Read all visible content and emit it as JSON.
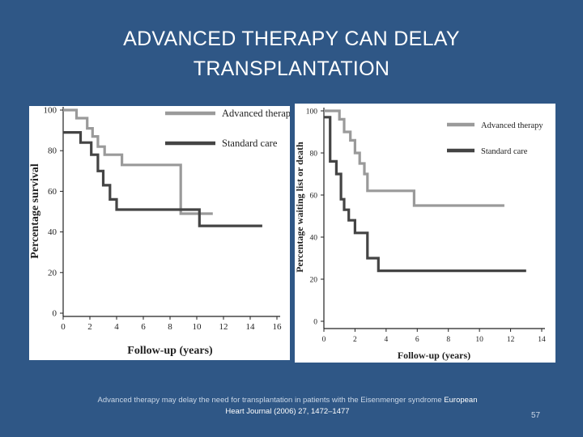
{
  "slide": {
    "title_line1": "ADVANCED THERAPY CAN DELAY",
    "title_line2": "TRANSPLANTATION",
    "caption_text": "Advanced therapy may delay the need for transplantation in patients with the Eisenmenger syndrome",
    "caption_citation": "European Heart Journal (2006) 27, 1472–1477",
    "page_number": "57"
  },
  "colors": {
    "background": "#2f5786",
    "advanced": "#9a9a9a",
    "standard": "#444444"
  },
  "chart_data": [
    {
      "type": "line",
      "step": true,
      "title": "",
      "xlabel": "Follow-up (years)",
      "ylabel": "Percentage survival",
      "xlim": [
        0,
        16
      ],
      "ylim": [
        0,
        100
      ],
      "xticks": [
        0,
        2,
        4,
        6,
        8,
        10,
        12,
        14,
        16
      ],
      "yticks": [
        0,
        20,
        40,
        60,
        80,
        100
      ],
      "grid": false,
      "legend_position": "top-right",
      "series": [
        {
          "name": "Advanced therapy",
          "color": "#9a9a9a",
          "points": [
            [
              0,
              100
            ],
            [
              1.0,
              100
            ],
            [
              1.0,
              96
            ],
            [
              1.8,
              96
            ],
            [
              1.8,
              91
            ],
            [
              2.2,
              91
            ],
            [
              2.2,
              87
            ],
            [
              2.6,
              87
            ],
            [
              2.6,
              82
            ],
            [
              3.1,
              82
            ],
            [
              3.1,
              78
            ],
            [
              4.4,
              78
            ],
            [
              4.4,
              73
            ],
            [
              8.8,
              73
            ],
            [
              8.8,
              49
            ],
            [
              11.2,
              49
            ]
          ]
        },
        {
          "name": "Standard care",
          "color": "#444444",
          "points": [
            [
              0,
              89
            ],
            [
              1.3,
              89
            ],
            [
              1.3,
              84
            ],
            [
              2.1,
              84
            ],
            [
              2.1,
              78
            ],
            [
              2.6,
              78
            ],
            [
              2.6,
              70
            ],
            [
              3.0,
              70
            ],
            [
              3.0,
              63
            ],
            [
              3.5,
              63
            ],
            [
              3.5,
              56
            ],
            [
              4.0,
              56
            ],
            [
              4.0,
              51
            ],
            [
              10.2,
              51
            ],
            [
              10.2,
              43
            ],
            [
              14.9,
              43
            ]
          ]
        }
      ]
    },
    {
      "type": "line",
      "step": true,
      "title": "",
      "xlabel": "Follow-up (years)",
      "ylabel": "Percentage waiting list or death",
      "xlim": [
        0,
        14
      ],
      "ylim": [
        0,
        100
      ],
      "xticks": [
        0,
        2,
        4,
        6,
        8,
        10,
        12,
        14
      ],
      "yticks": [
        0,
        20,
        40,
        60,
        80,
        100
      ],
      "grid": false,
      "legend_position": "top-right",
      "series": [
        {
          "name": "Advanced therapy",
          "color": "#9a9a9a",
          "points": [
            [
              0,
              100
            ],
            [
              1.0,
              100
            ],
            [
              1.0,
              96
            ],
            [
              1.3,
              96
            ],
            [
              1.3,
              90
            ],
            [
              1.7,
              90
            ],
            [
              1.7,
              86
            ],
            [
              2.0,
              86
            ],
            [
              2.0,
              80
            ],
            [
              2.3,
              80
            ],
            [
              2.3,
              75
            ],
            [
              2.6,
              75
            ],
            [
              2.6,
              70
            ],
            [
              2.8,
              70
            ],
            [
              2.8,
              62
            ],
            [
              5.8,
              62
            ],
            [
              5.8,
              55
            ],
            [
              11.6,
              55
            ]
          ]
        },
        {
          "name": "Standard care",
          "color": "#444444",
          "points": [
            [
              0,
              97
            ],
            [
              0.4,
              97
            ],
            [
              0.4,
              76
            ],
            [
              0.8,
              76
            ],
            [
              0.8,
              70
            ],
            [
              1.1,
              70
            ],
            [
              1.1,
              58
            ],
            [
              1.3,
              58
            ],
            [
              1.3,
              53
            ],
            [
              1.6,
              53
            ],
            [
              1.6,
              48
            ],
            [
              2.0,
              48
            ],
            [
              2.0,
              42
            ],
            [
              2.8,
              42
            ],
            [
              2.8,
              30
            ],
            [
              3.5,
              30
            ],
            [
              3.5,
              24
            ],
            [
              13.0,
              24
            ]
          ]
        }
      ]
    }
  ]
}
